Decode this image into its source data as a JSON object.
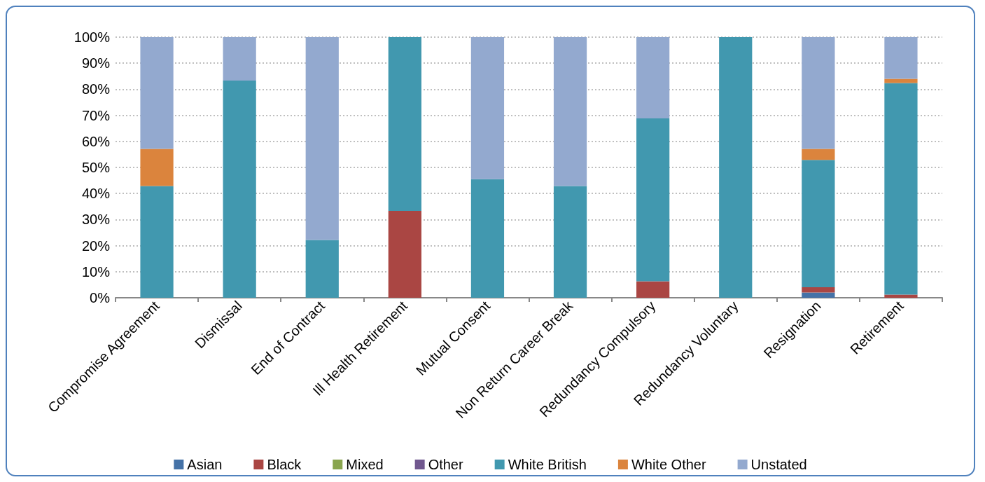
{
  "chart_data": {
    "type": "bar",
    "stacked": true,
    "categories": [
      "Compromise Agreement",
      "Dismissal",
      "End of Contract",
      "Ill Health Retirement",
      "Mutual Consent",
      "Non Return Career Break",
      "Redundancy Compulsory",
      "Redundancy Voluntary",
      "Resignation",
      "Retirement"
    ],
    "series": [
      {
        "name": "Asian",
        "color": "#4572a7",
        "values": [
          0,
          0,
          0,
          0,
          0,
          0,
          0,
          0,
          2.0,
          0
        ]
      },
      {
        "name": "Black",
        "color": "#aa4643",
        "values": [
          0,
          0,
          0,
          33.3,
          0,
          0,
          6.3,
          0,
          2.0,
          1.2
        ]
      },
      {
        "name": "Mixed",
        "color": "#89a54e",
        "values": [
          0,
          0,
          0,
          0,
          0,
          0,
          0,
          0,
          0,
          0
        ]
      },
      {
        "name": "Other",
        "color": "#71588f",
        "values": [
          0,
          0,
          0,
          0,
          0,
          0,
          0,
          0,
          0,
          0
        ]
      },
      {
        "name": "White British",
        "color": "#4198af",
        "values": [
          42.9,
          83.3,
          22.2,
          66.7,
          45.5,
          42.9,
          62.5,
          100,
          48.9,
          81.2
        ]
      },
      {
        "name": "White Other",
        "color": "#db843d",
        "values": [
          14.2,
          0,
          0,
          0,
          0,
          0,
          0,
          0,
          4.2,
          1.6
        ]
      },
      {
        "name": "Unstated",
        "color": "#93a9cf",
        "values": [
          42.9,
          16.7,
          77.8,
          0,
          54.5,
          57.1,
          31.2,
          0,
          42.9,
          16.0
        ]
      }
    ],
    "ylim": [
      0,
      100
    ],
    "yticks": [
      {
        "value": 0,
        "label": "0%"
      },
      {
        "value": 10,
        "label": "10%"
      },
      {
        "value": 20,
        "label": "20%"
      },
      {
        "value": 30,
        "label": "30%"
      },
      {
        "value": 40,
        "label": "40%"
      },
      {
        "value": 50,
        "label": "50%"
      },
      {
        "value": 60,
        "label": "60%"
      },
      {
        "value": 70,
        "label": "70%"
      },
      {
        "value": 80,
        "label": "80%"
      },
      {
        "value": 90,
        "label": "90%"
      },
      {
        "value": 100,
        "label": "100%"
      }
    ],
    "grid": "y",
    "legend": "bottom"
  }
}
